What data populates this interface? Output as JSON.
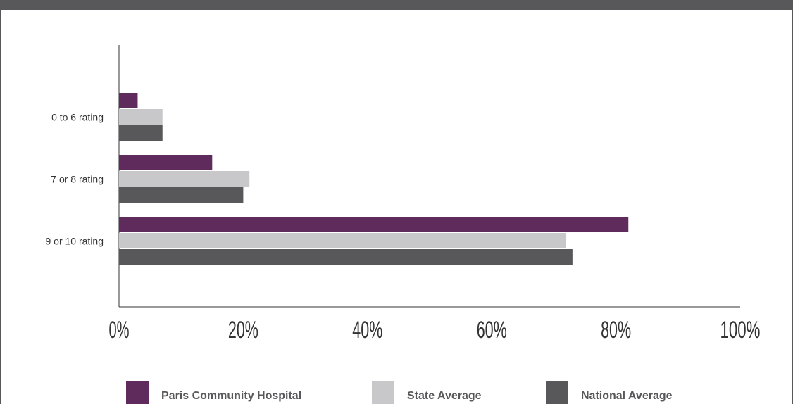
{
  "chart_data": {
    "type": "bar",
    "orientation": "horizontal",
    "categories": [
      "0 to 6 rating",
      "7 or 8 rating",
      "9 or 10 rating"
    ],
    "series": [
      {
        "name": "Paris Community Hospital",
        "color": "#5e2b5c",
        "values": [
          3,
          15,
          82
        ]
      },
      {
        "name": "State Average",
        "color": "#c8c8ca",
        "values": [
          7,
          21,
          72
        ]
      },
      {
        "name": "National Average",
        "color": "#58585a",
        "values": [
          7,
          20,
          73
        ]
      }
    ],
    "xlim": [
      0,
      100
    ],
    "xticks": [
      "0%",
      "20%",
      "40%",
      "60%",
      "80%",
      "100%"
    ],
    "grid": false,
    "legend_position": "bottom"
  },
  "frame_color": "#58585a"
}
